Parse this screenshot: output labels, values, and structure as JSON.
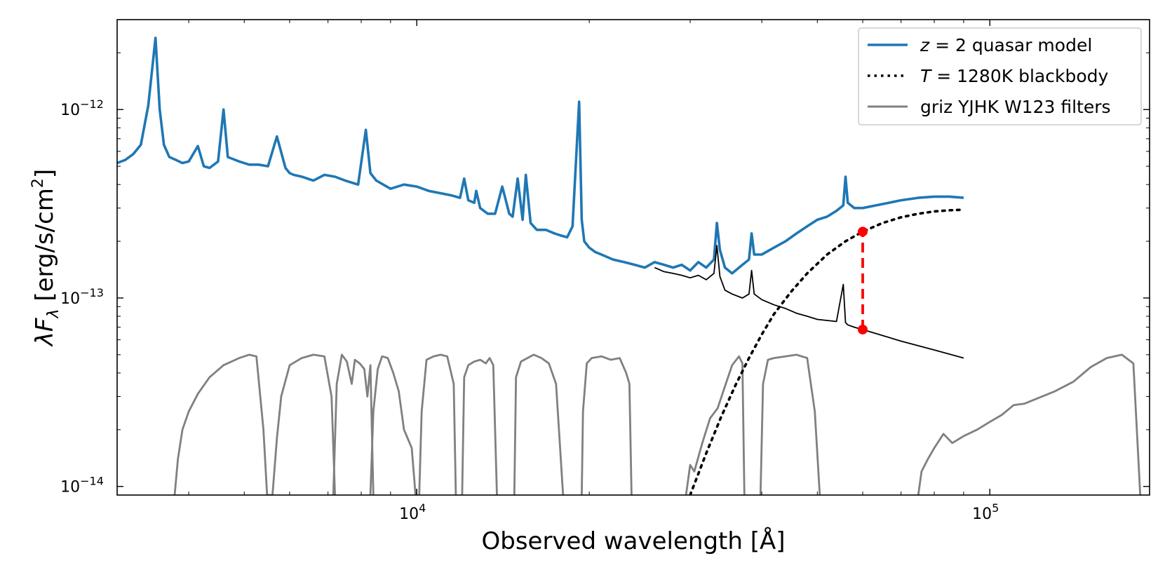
{
  "chart_data": {
    "type": "line",
    "title": "",
    "xlabel": "Observed wavelength [Å]",
    "ylabel": "λF",
    "ylabel_sub": "λ",
    "ylabel_units": " [erg/s/cm",
    "ylabel_sup": "2",
    "ylabel_close": "]",
    "xscale": "log",
    "yscale": "log",
    "xlim": [
      3000,
      190000
    ],
    "ylim": [
      9e-15,
      3e-12
    ],
    "x_major_ticks": [
      {
        "value": 10000,
        "base": "10",
        "exp": "4"
      },
      {
        "value": 100000,
        "base": "10",
        "exp": "5"
      }
    ],
    "y_major_ticks": [
      {
        "value": 1e-14,
        "base": "10",
        "exp": "−14"
      },
      {
        "value": 1e-13,
        "base": "10",
        "exp": "−13"
      },
      {
        "value": 1e-12,
        "base": "10",
        "exp": "−12"
      }
    ],
    "legend": {
      "position": "upper right",
      "entries": [
        {
          "series": "quasar",
          "prefix": "",
          "italic": "z",
          "suffix": " = 2 quasar model",
          "color": "#1f77b4",
          "style": "solid"
        },
        {
          "series": "blackbody",
          "prefix": "",
          "italic": "T",
          "suffix": " = 1280K blackbody",
          "color": "#000000",
          "style": "dotted"
        },
        {
          "series": "filters",
          "prefix": "griz YJHK W123 filters",
          "italic": "",
          "suffix": "",
          "color": "#808080",
          "style": "solid"
        }
      ]
    },
    "series": [
      {
        "name": "z = 2 quasar model",
        "color": "#1f77b4",
        "style": "solid",
        "x": [
          3000,
          3100,
          3200,
          3300,
          3400,
          3500,
          3560,
          3620,
          3700,
          3800,
          3900,
          4000,
          4150,
          4250,
          4350,
          4500,
          4600,
          4680,
          4750,
          4900,
          5100,
          5300,
          5500,
          5700,
          5900,
          6000,
          6100,
          6300,
          6600,
          6900,
          7200,
          7500,
          7900,
          8150,
          8300,
          8500,
          9000,
          9500,
          10000,
          10500,
          11000,
          11500,
          11900,
          12100,
          12300,
          12600,
          12700,
          12900,
          13300,
          13700,
          14100,
          14500,
          14700,
          15000,
          15300,
          15500,
          15800,
          16200,
          16800,
          17400,
          17800,
          18300,
          18700,
          19200,
          19400,
          19600,
          20000,
          20500,
          21000,
          22000,
          23000,
          24000,
          25000,
          26000,
          27000,
          28000,
          29000,
          30000,
          31000,
          32000,
          33000,
          33400,
          33800,
          34500,
          35500,
          37000,
          38000,
          38400,
          38800,
          40000,
          42000,
          44000,
          46000,
          48000,
          50000,
          52000,
          54000,
          55500,
          56000,
          56500,
          58000,
          60000,
          65000,
          70000,
          75000,
          80000,
          85000,
          90000
        ],
        "y": [
          5.2e-13,
          5.4e-13,
          5.8e-13,
          6.5e-13,
          1.05e-12,
          2.4e-12,
          1e-12,
          6.5e-13,
          5.6e-13,
          5.4e-13,
          5.2e-13,
          5.3e-13,
          6.4e-13,
          5e-13,
          4.9e-13,
          5.3e-13,
          1e-12,
          5.6e-13,
          5.5e-13,
          5.3e-13,
          5.1e-13,
          5.1e-13,
          5e-13,
          7.2e-13,
          4.9e-13,
          4.6e-13,
          4.5e-13,
          4.4e-13,
          4.2e-13,
          4.5e-13,
          4.4e-13,
          4.2e-13,
          4e-13,
          7.8e-13,
          4.6e-13,
          4.2e-13,
          3.8e-13,
          4e-13,
          3.9e-13,
          3.7e-13,
          3.6e-13,
          3.5e-13,
          3.4e-13,
          4.3e-13,
          3.3e-13,
          3.2e-13,
          3.7e-13,
          3e-13,
          2.8e-13,
          2.8e-13,
          3.9e-13,
          2.8e-13,
          2.7e-13,
          4.3e-13,
          2.6e-13,
          4.5e-13,
          2.5e-13,
          2.3e-13,
          2.3e-13,
          2.2e-13,
          2.15e-13,
          2.1e-13,
          2.4e-13,
          1.1e-12,
          2.6e-13,
          2e-13,
          1.85e-13,
          1.75e-13,
          1.7e-13,
          1.6e-13,
          1.55e-13,
          1.5e-13,
          1.45e-13,
          1.55e-13,
          1.5e-13,
          1.45e-13,
          1.5e-13,
          1.4e-13,
          1.55e-13,
          1.45e-13,
          1.6e-13,
          2.5e-13,
          1.8e-13,
          1.45e-13,
          1.35e-13,
          1.5e-13,
          1.6e-13,
          2.2e-13,
          1.7e-13,
          1.7e-13,
          1.85e-13,
          2e-13,
          2.2e-13,
          2.4e-13,
          2.6e-13,
          2.7e-13,
          2.9e-13,
          3.1e-13,
          4.4e-13,
          3.2e-13,
          3e-13,
          3e-13,
          3.15e-13,
          3.3e-13,
          3.4e-13,
          3.45e-13,
          3.45e-13,
          3.4e-13
        ]
      },
      {
        "name": "quasar continuum (black)",
        "color": "#000000",
        "style": "solid",
        "x": [
          26000,
          27000,
          28000,
          29000,
          30000,
          31000,
          32000,
          33000,
          33400,
          33800,
          34500,
          35500,
          37000,
          38000,
          38400,
          38800,
          40000,
          42000,
          44000,
          46000,
          48000,
          50000,
          52000,
          54000,
          55500,
          56000,
          56500,
          58000,
          60000,
          70000,
          80000,
          90000
        ],
        "y": [
          1.45e-13,
          1.38e-13,
          1.35e-13,
          1.32e-13,
          1.28e-13,
          1.32e-13,
          1.25e-13,
          1.35e-13,
          1.9e-13,
          1.3e-13,
          1.1e-13,
          1.05e-13,
          1e-13,
          1.05e-13,
          1.4e-13,
          1.05e-13,
          9.8e-14,
          9.2e-14,
          8.8e-14,
          8.3e-14,
          8e-14,
          7.7e-14,
          7.6e-14,
          7.5e-14,
          1.18e-13,
          7.4e-14,
          7.2e-14,
          7e-14,
          6.8e-14,
          5.9e-14,
          5.3e-14,
          4.8e-14
        ]
      },
      {
        "name": "T = 1280K blackbody",
        "color": "#000000",
        "style": "dotted",
        "x": [
          30000,
          32000,
          34000,
          36000,
          38000,
          40000,
          42000,
          45000,
          48000,
          52000,
          56000,
          60000,
          65000,
          70000,
          75000,
          80000,
          85000,
          90000
        ],
        "y": [
          9e-15,
          1.5e-14,
          2.35e-14,
          3.45e-14,
          4.8e-14,
          6.4e-14,
          8.2e-14,
          1.08e-13,
          1.35e-13,
          1.7e-13,
          2e-13,
          2.25e-13,
          2.5e-13,
          2.68e-13,
          2.8e-13,
          2.88e-13,
          2.92e-13,
          2.94e-13
        ]
      },
      {
        "name": "gap marker",
        "color": "#ff0000",
        "style": "dashed",
        "x": [
          60000,
          60000
        ],
        "y": [
          6.8e-14,
          2.25e-13
        ]
      },
      {
        "name": "griz YJHK W123 filters",
        "color": "#808080",
        "style": "solid",
        "curves": [
          {
            "x": [
              3780,
              3830,
              3900,
              4000,
              4150,
              4350,
              4600,
              4900,
              5100,
              5250,
              5400,
              5480,
              5600
            ],
            "y": [
              9e-15,
              1.4e-14,
              2e-14,
              2.5e-14,
              3.1e-14,
              3.8e-14,
              4.4e-14,
              4.8e-14,
              5e-14,
              4.9e-14,
              2e-14,
              9e-15,
              9e-15
            ]
          },
          {
            "x": [
              5600,
              5700,
              5800,
              6000,
              6300,
              6600,
              6900,
              7100,
              7200
            ],
            "y": [
              9e-15,
              1.8e-14,
              3e-14,
              4.4e-14,
              4.8e-14,
              5e-14,
              4.9e-14,
              3e-14,
              9e-15
            ]
          },
          {
            "x": [
              7150,
              7250,
              7400,
              7550,
              7700,
              7800,
              7950,
              8100,
              8200,
              8300,
              8400
            ],
            "y": [
              9e-15,
              3.5e-14,
              5e-14,
              4.6e-14,
              3.5e-14,
              4.7e-14,
              4.5e-14,
              4.2e-14,
              3e-14,
              4.4e-14,
              9e-15
            ]
          },
          {
            "x": [
              8300,
              8400,
              8550,
              8700,
              8900,
              9100,
              9300,
              9500,
              9800,
              9900,
              9950
            ],
            "y": [
              9e-15,
              2.5e-14,
              4.2e-14,
              4.9e-14,
              4.8e-14,
              4e-14,
              3.2e-14,
              2e-14,
              1.6e-14,
              1.1e-14,
              9e-15
            ]
          },
          {
            "x": [
              10100,
              10200,
              10400,
              10700,
              11000,
              11300,
              11600,
              11700
            ],
            "y": [
              9e-15,
              2.5e-14,
              4.7e-14,
              4.9e-14,
              5e-14,
              4.9e-14,
              3.5e-14,
              9e-15
            ]
          },
          {
            "x": [
              12000,
              12100,
              12300,
              12600,
              12900,
              13200,
              13400,
              13600,
              13800
            ],
            "y": [
              9e-15,
              3.8e-14,
              4.4e-14,
              4.6e-14,
              4.7e-14,
              4.5e-14,
              4.8e-14,
              4.4e-14,
              9e-15
            ]
          },
          {
            "x": [
              14800,
              14900,
              15200,
              15600,
              16000,
              16500,
              17000,
              17500,
              18000
            ],
            "y": [
              9e-15,
              3.8e-14,
              4.6e-14,
              4.8e-14,
              5e-14,
              4.8e-14,
              4.5e-14,
              3.5e-14,
              9e-15
            ]
          },
          {
            "x": [
              19400,
              19500,
              19800,
              20200,
              21000,
              21800,
              22600,
              23200,
              23500,
              23700
            ],
            "y": [
              9e-15,
              2.5e-14,
              4.5e-14,
              4.8e-14,
              4.9e-14,
              4.7e-14,
              4.8e-14,
              4e-14,
              3.5e-14,
              9e-15
            ]
          },
          {
            "x": [
              29500,
              30000,
              30500,
              31500,
              32500,
              33500,
              34500,
              35500,
              36500,
              37000,
              37300
            ],
            "y": [
              9e-15,
              1.3e-14,
              1.2e-14,
              1.7e-14,
              2.3e-14,
              2.6e-14,
              3.4e-14,
              4.4e-14,
              4.9e-14,
              4.5e-14,
              9e-15
            ]
          },
          {
            "x": [
              39800,
              40200,
              41000,
              42000,
              44000,
              46000,
              48000,
              49500,
              50500
            ],
            "y": [
              9e-15,
              3.5e-14,
              4.7e-14,
              4.8e-14,
              4.9e-14,
              5e-14,
              4.8e-14,
              2.5e-14,
              9e-15
            ]
          },
          {
            "x": [
              75000,
              76000,
              78000,
              80000,
              83000,
              86000,
              90000,
              95000,
              100000,
              105000,
              110000,
              115000,
              120000,
              130000,
              140000,
              150000,
              160000,
              170000,
              178000,
              183000
            ],
            "y": [
              9e-15,
              1.2e-14,
              1.4e-14,
              1.6e-14,
              1.9e-14,
              1.7e-14,
              1.85e-14,
              2e-14,
              2.2e-14,
              2.4e-14,
              2.7e-14,
              2.75e-14,
              2.9e-14,
              3.2e-14,
              3.6e-14,
              4.3e-14,
              4.8e-14,
              5e-14,
              4.5e-14,
              9e-15
            ]
          }
        ]
      }
    ],
    "markers": [
      {
        "x": 60000,
        "y": 2.25e-13,
        "color": "#ff0000"
      },
      {
        "x": 60000,
        "y": 6.8e-14,
        "color": "#ff0000"
      }
    ]
  }
}
